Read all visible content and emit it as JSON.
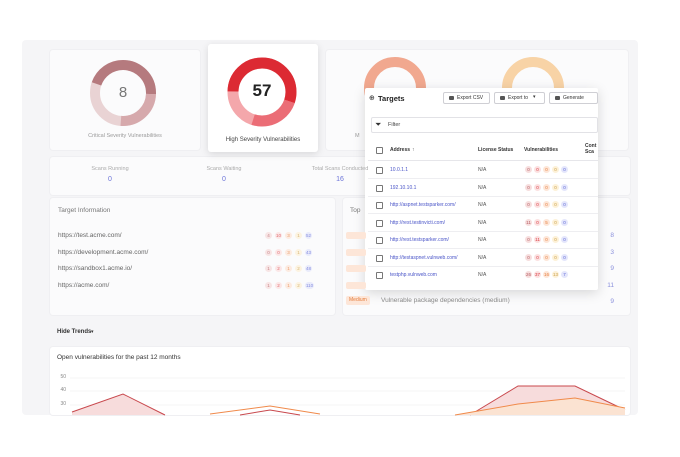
{
  "cards": [
    {
      "value": 8,
      "label": "Critical Severity Vulnerabilities"
    },
    {
      "value": 57,
      "label": "High Severity Vulnerabilities"
    },
    {
      "label": "M"
    }
  ],
  "stats": [
    {
      "label": "Scans Running",
      "value": 0
    },
    {
      "label": "Scans Waiting",
      "value": 0
    },
    {
      "label": "Total Scans Conducted",
      "value": 16
    }
  ],
  "target_info": {
    "title": "Target Information",
    "rows": [
      {
        "url": "https://test.acme.com/",
        "counts": [
          4,
          10,
          3,
          1,
          52
        ]
      },
      {
        "url": "https://development.acme.com/",
        "counts": [
          0,
          0,
          3,
          1,
          43
        ]
      },
      {
        "url": "https://sandbox1.acme.io/",
        "counts": [
          1,
          2,
          1,
          2,
          48
        ]
      },
      {
        "url": "https://acme.com/",
        "counts": [
          1,
          2,
          1,
          2,
          110
        ]
      }
    ]
  },
  "top": {
    "title": "Top",
    "counts": [
      8,
      3,
      9,
      11,
      9
    ],
    "last_badge": "Medium",
    "last_text": "Vulnerable package dependencies (medium)"
  },
  "trends": {
    "toggle": "Hide Trends",
    "title": "Open vulnerabilities for the past 12 months",
    "yticks": [
      50,
      40,
      30
    ]
  },
  "targets_panel": {
    "title": "Targets",
    "buttons": [
      "Export CSV",
      "Export to",
      "Generate Reports"
    ],
    "filter": "Filter",
    "columns": [
      "Address",
      "License Status",
      "Vulnerabilities",
      "Cont Sca"
    ],
    "rows": [
      {
        "address": "10.0.1.1",
        "license": "N/A",
        "counts": [
          0,
          0,
          0,
          0,
          0
        ]
      },
      {
        "address": "192.10.10.1",
        "license": "N/A",
        "counts": [
          0,
          0,
          0,
          0,
          0
        ]
      },
      {
        "address": "http://aspnet.testsparker.com/",
        "license": "N/A",
        "counts": [
          0,
          0,
          0,
          0,
          0
        ]
      },
      {
        "address": "http://rest.testinvicti.com/",
        "license": "N/A",
        "counts": [
          11,
          0,
          5,
          0,
          0
        ]
      },
      {
        "address": "http://rest.testsparker.com/",
        "license": "N/A",
        "counts": [
          0,
          11,
          0,
          0,
          0
        ]
      },
      {
        "address": "http://testaspnet.vulnweb.com/",
        "license": "N/A",
        "counts": [
          0,
          0,
          0,
          0,
          0
        ]
      },
      {
        "address": "testphp.vulnweb.com",
        "license": "N/A",
        "counts": [
          26,
          37,
          16,
          13,
          7
        ]
      }
    ]
  }
}
